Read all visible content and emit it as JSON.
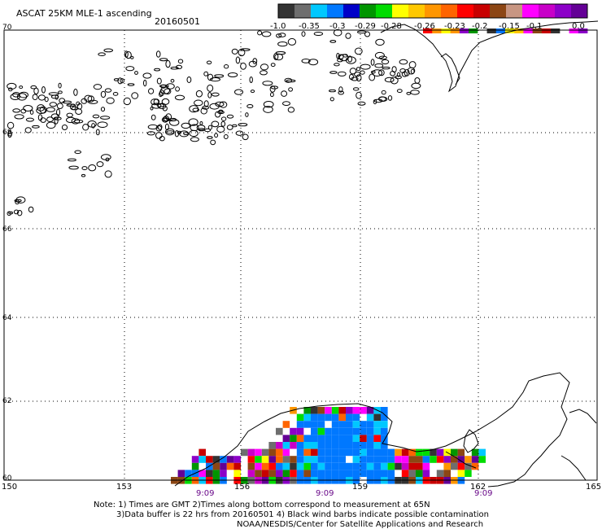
{
  "header": {
    "title": "ASCAT 25KM MLE-1 ascending",
    "date": "20160501"
  },
  "colorbar": {
    "top_colors": [
      "#333333",
      "#6e6e6e",
      "#00c8ff",
      "#0078ff",
      "#0000c8",
      "#009600",
      "#00dc00",
      "#ffff00",
      "#ffc800",
      "#ff9600",
      "#ff6400",
      "#ff0000",
      "#c80000",
      "#8c4614",
      "#c89682",
      "#ff00ff",
      "#c800c8",
      "#8c00c8",
      "#640096"
    ],
    "top_labels": [
      "-1.0",
      "-0.35",
      "-0.3",
      "-0.29",
      "-0.28",
      "-0.26",
      "-0.23",
      "-0.2",
      "-0.15",
      "-0.1",
      "0.0"
    ],
    "bottom_colors": [
      "#ff0000",
      "#ff9600",
      "#ffff00",
      "#ff9600",
      "#8c00c8",
      "#009600",
      "#ffffff",
      "#333333",
      "#0078ff",
      "#ffff00",
      "#ffc800",
      "#ff00ff",
      "#8c4614",
      "#c80000",
      "#333333",
      "#ffffff",
      "#ff00ff",
      "#8c00c8"
    ]
  },
  "map": {
    "lon_labels": [
      "150",
      "153",
      "156",
      "159",
      "162",
      "165"
    ],
    "lat_labels": [
      "70",
      "68",
      "66",
      "64",
      "62",
      "60"
    ],
    "time_labels": [
      "9:09",
      "9:09",
      "9:09"
    ],
    "pixel_colors": [
      "#0078ff",
      "#00c8ff",
      "#8c00c8",
      "#640096",
      "#ff00ff",
      "#c800c8",
      "#ff0000",
      "#ff6400",
      "#ff9600",
      "#ffff00",
      "#333333",
      "#6e6e6e",
      "#8c4614",
      "#009600",
      "#00dc00",
      "#ffffff",
      "#c80000"
    ]
  },
  "footer": {
    "line1": "Note: 1) Times are GMT 2)Times along bottom correspond to measurement at 65N",
    "line2": "3)Data buffer is 22 hrs from 20160501 4) Black wind barbs indicate possible contamination",
    "line3": "NOAA/NESDIS/Center for Satellite Applications and Research"
  }
}
